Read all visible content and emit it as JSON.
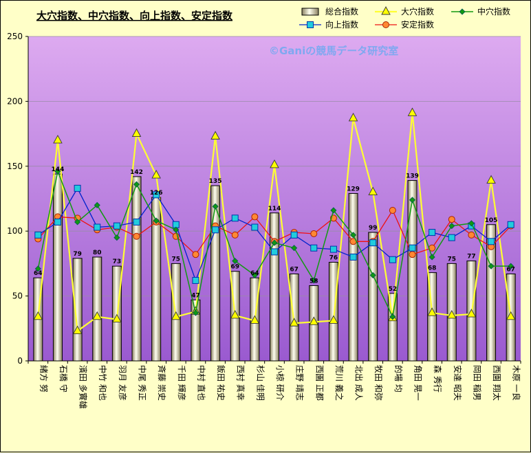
{
  "chart_data": {
    "type": "bar",
    "title": "大穴指数、中穴指数、向上指数、安定指数",
    "watermark": "©Ganiの競馬データ研究室",
    "ylim": [
      0,
      250
    ],
    "yticks": [
      0,
      50,
      100,
      150,
      200,
      250
    ],
    "grid": true,
    "legend_position": "top",
    "colors": {
      "bar_fill": "#d8d0a0",
      "bar_stroke": "#000000",
      "ana_large": "#ffff33",
      "ana_mid": "#119911",
      "up": "#0022cc",
      "stable": "#ee1111",
      "up_marker": "#22ccdd",
      "stable_marker": "#ff8833",
      "ana_large_marker": "#ffff00",
      "plot_top": "#ddaaf0",
      "plot_bottom": "#9a5ad0",
      "background": "#ffffc8"
    },
    "categories": [
      "緒方 努",
      "石橋 守",
      "濱田 多實雄",
      "中竹 和也",
      "羽月 友彦",
      "中尾 秀正",
      "斉藤 崇史",
      "千田 輝彦",
      "中村 直也",
      "飯田 祐史",
      "西村 真幸",
      "杉山 佳明",
      "小椋 研介",
      "庄野 靖志",
      "西園 正都",
      "荒川 義之",
      "北出 成人",
      "牧田 和弥",
      "的場 均",
      "角田 晃一",
      "森 秀行",
      "安達 昭夫",
      "岡田 稲男",
      "西園 翔太",
      "木原 一良"
    ],
    "series": [
      {
        "name": "総合指数",
        "kind": "bar",
        "values": [
          64,
          144,
          79,
          80,
          73,
          142,
          126,
          75,
          47,
          135,
          69,
          64,
          114,
          67,
          58,
          76,
          129,
          99,
          52,
          139,
          68,
          75,
          77,
          105,
          67
        ]
      },
      {
        "name": "大穴指数",
        "kind": "line",
        "values": [
          34,
          170,
          23,
          34,
          32,
          175,
          143,
          34,
          38,
          173,
          35,
          31,
          151,
          29,
          30,
          31,
          187,
          130,
          33,
          191,
          37,
          35,
          36,
          139,
          34
        ]
      },
      {
        "name": "中穴指数",
        "kind": "line",
        "values": [
          71,
          146,
          107,
          120,
          95,
          136,
          108,
          101,
          37,
          119,
          77,
          66,
          91,
          87,
          62,
          116,
          97,
          66,
          34,
          124,
          80,
          104,
          106,
          73,
          73
        ]
      },
      {
        "name": "向上指数",
        "kind": "line",
        "values": [
          97,
          107,
          133,
          103,
          104,
          107,
          128,
          105,
          62,
          101,
          110,
          103,
          84,
          97,
          87,
          86,
          80,
          91,
          78,
          87,
          99,
          95,
          104,
          92,
          105
        ]
      },
      {
        "name": "安定指数",
        "kind": "line",
        "values": [
          94,
          111,
          110,
          101,
          103,
          96,
          107,
          96,
          82,
          104,
          97,
          111,
          92,
          99,
          98,
          110,
          92,
          92,
          116,
          82,
          87,
          109,
          97,
          88,
          104
        ]
      }
    ]
  }
}
